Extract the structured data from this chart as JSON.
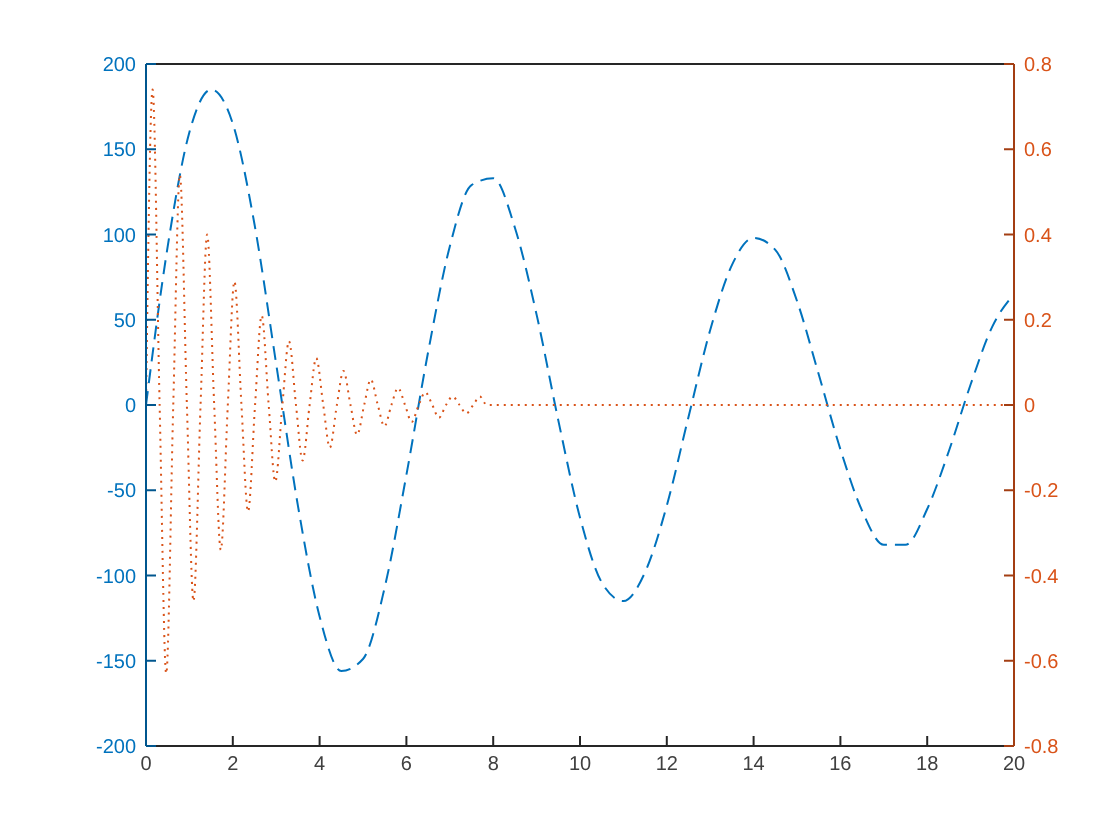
{
  "chart_data": {
    "type": "line",
    "xlim": [
      0,
      20
    ],
    "xticks": [
      0,
      2,
      4,
      6,
      8,
      10,
      12,
      14,
      16,
      18,
      20
    ],
    "ylim": [
      -200,
      200
    ],
    "yticks": [
      -200,
      -150,
      -100,
      -50,
      0,
      50,
      100,
      150,
      200
    ],
    "y2lim": [
      -0.8,
      0.8
    ],
    "y2ticks": [
      -0.8,
      -0.6,
      -0.4,
      -0.2,
      0,
      0.2,
      0.4,
      0.6,
      0.8
    ],
    "series": [
      {
        "color": "#0072bd",
        "line_style": "dashed",
        "x": [
          0,
          0.5,
          1,
          1.5,
          2,
          2.5,
          3,
          3.5,
          4,
          4.5,
          5,
          5.5,
          6,
          6.5,
          7,
          7.5,
          8,
          8.5,
          9,
          9.5,
          10,
          10.5,
          11,
          11.5,
          12,
          12.5,
          13,
          13.5,
          14,
          14.5,
          15,
          15.5,
          16,
          16.5,
          17,
          17.5,
          18,
          18.5,
          19,
          19.5,
          20
        ],
        "values": [
          0,
          93,
          160,
          185,
          165,
          106,
          24,
          -59,
          -124,
          -156,
          -149,
          -107,
          -41,
          31,
          93,
          129,
          133,
          104,
          53,
          -9,
          -66,
          -104,
          -115,
          -98,
          -59,
          -7,
          44,
          82,
          98,
          91,
          61,
          18,
          -26,
          -62,
          -82,
          -82,
          -61,
          -27,
          12,
          46,
          65
        ]
      },
      {
        "color": "#d95319",
        "line_style": "dotted",
        "axis": "y2",
        "x": [
          0,
          0.152,
          0.314,
          0.466,
          0.628,
          0.78,
          0.942,
          1.094,
          1.257,
          1.409,
          1.571,
          1.723,
          1.885,
          2.037,
          2.199,
          2.351,
          2.513,
          2.665,
          2.827,
          2.979,
          3.142,
          3.294,
          3.456,
          3.608,
          3.77,
          3.922,
          4.084,
          4.236,
          4.398,
          4.55,
          4.712,
          4.864,
          5.027,
          5.179,
          5.341,
          5.493,
          5.655,
          5.807,
          5.969,
          6.121,
          6.283,
          6.435,
          6.597,
          6.749,
          6.912,
          7.064,
          7.226,
          7.378,
          7.54,
          7.692,
          7.854,
          20
        ],
        "values": [
          0,
          0.74,
          0,
          -0.63,
          0,
          0.54,
          0,
          -0.46,
          0,
          0.4,
          0,
          -0.34,
          0,
          0.29,
          0,
          -0.25,
          0,
          0.21,
          0,
          -0.18,
          0,
          0.15,
          0,
          -0.13,
          0,
          0.11,
          0,
          -0.1,
          0,
          0.08,
          0,
          -0.07,
          0,
          0.06,
          0,
          -0.05,
          0,
          0.04,
          0,
          -0.04,
          0,
          0.03,
          0,
          -0.03,
          0,
          0.02,
          0,
          -0.02,
          0,
          0.02,
          0,
          0
        ]
      }
    ]
  }
}
